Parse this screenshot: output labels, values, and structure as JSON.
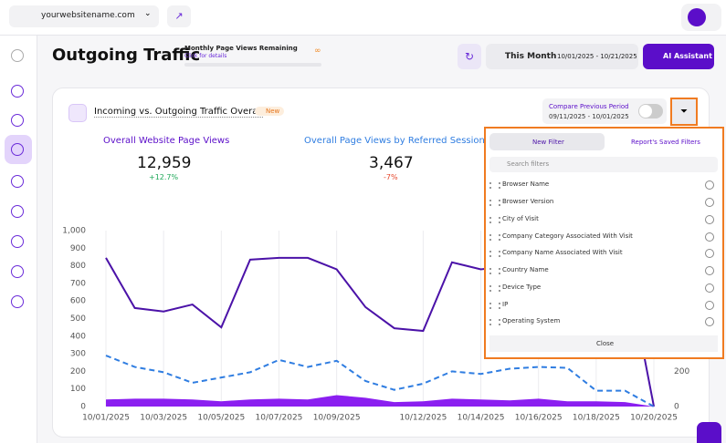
{
  "header": {
    "site": "yourwebsitename.com"
  },
  "toolbar": {
    "title": "Outgoing Traffic",
    "quota_title": "Monthly Page Views Remaining",
    "quota_link": "Click for details",
    "quota_value": "∞",
    "period": "This Month",
    "date_range": "10/01/2025 - 10/21/2025",
    "assistant": "AI Assistant"
  },
  "card": {
    "title": "Incoming vs. Outgoing Traffic Overall",
    "badge": "New",
    "compare_label": "Compare Previous Period",
    "compare_range": "09/11/2025 - 10/01/2025",
    "stats": [
      {
        "value": "12,959",
        "change": "+12.7%"
      },
      {
        "value": "3,467",
        "change": "-7%"
      }
    ]
  },
  "filter_panel": {
    "tabs": [
      "New Filter",
      "Report's Saved Filters"
    ],
    "search_placeholder": "Search filters",
    "items": [
      "Browser Name",
      "Browser Version",
      "City of Visit",
      "Company Category Associated With Visit",
      "Company Name Associated With Visit",
      "Country Name",
      "Device Type",
      "IP",
      "Operating System"
    ],
    "close": "Close"
  },
  "chart_data": {
    "type": "line",
    "categories": [
      "10/01/2025",
      null,
      "10/03/2025",
      null,
      "10/05/2025",
      null,
      "10/07/2025",
      null,
      "10/09/2025",
      null,
      null,
      "10/12/2025",
      null,
      "10/14/2025",
      null,
      "10/16/2025",
      null,
      "10/18/2025",
      null,
      "10/20/2025"
    ],
    "series": [
      {
        "name": "Overall Website Page Views",
        "color": "#4b12a8",
        "style": "solid",
        "values": [
          845,
          560,
          540,
          580,
          450,
          835,
          845,
          845,
          780,
          565,
          445,
          430,
          820,
          780,
          800,
          820,
          780,
          800,
          850,
          0
        ]
      },
      {
        "name": "Overall Page Views by Referred Sessions",
        "color": "#2f7de1",
        "style": "dashed",
        "values": [
          290,
          225,
          195,
          135,
          165,
          195,
          265,
          225,
          260,
          145,
          95,
          130,
          200,
          185,
          215,
          225,
          220,
          90,
          90,
          0
        ]
      },
      {
        "color": "#8b1ff0",
        "style": "area",
        "values": [
          40,
          45,
          45,
          40,
          30,
          40,
          45,
          40,
          65,
          50,
          25,
          30,
          45,
          40,
          35,
          45,
          30,
          30,
          25,
          0
        ]
      }
    ],
    "ylim": [
      0,
      1000
    ],
    "yticks": [
      0,
      100,
      200,
      300,
      400,
      500,
      600,
      700,
      800,
      900,
      {
        "value": 1000,
        "label": "1,000"
      }
    ],
    "y2lim": [
      0,
      1000
    ],
    "y2ticks": [
      0,
      200
    ],
    "grid": "vertical"
  }
}
